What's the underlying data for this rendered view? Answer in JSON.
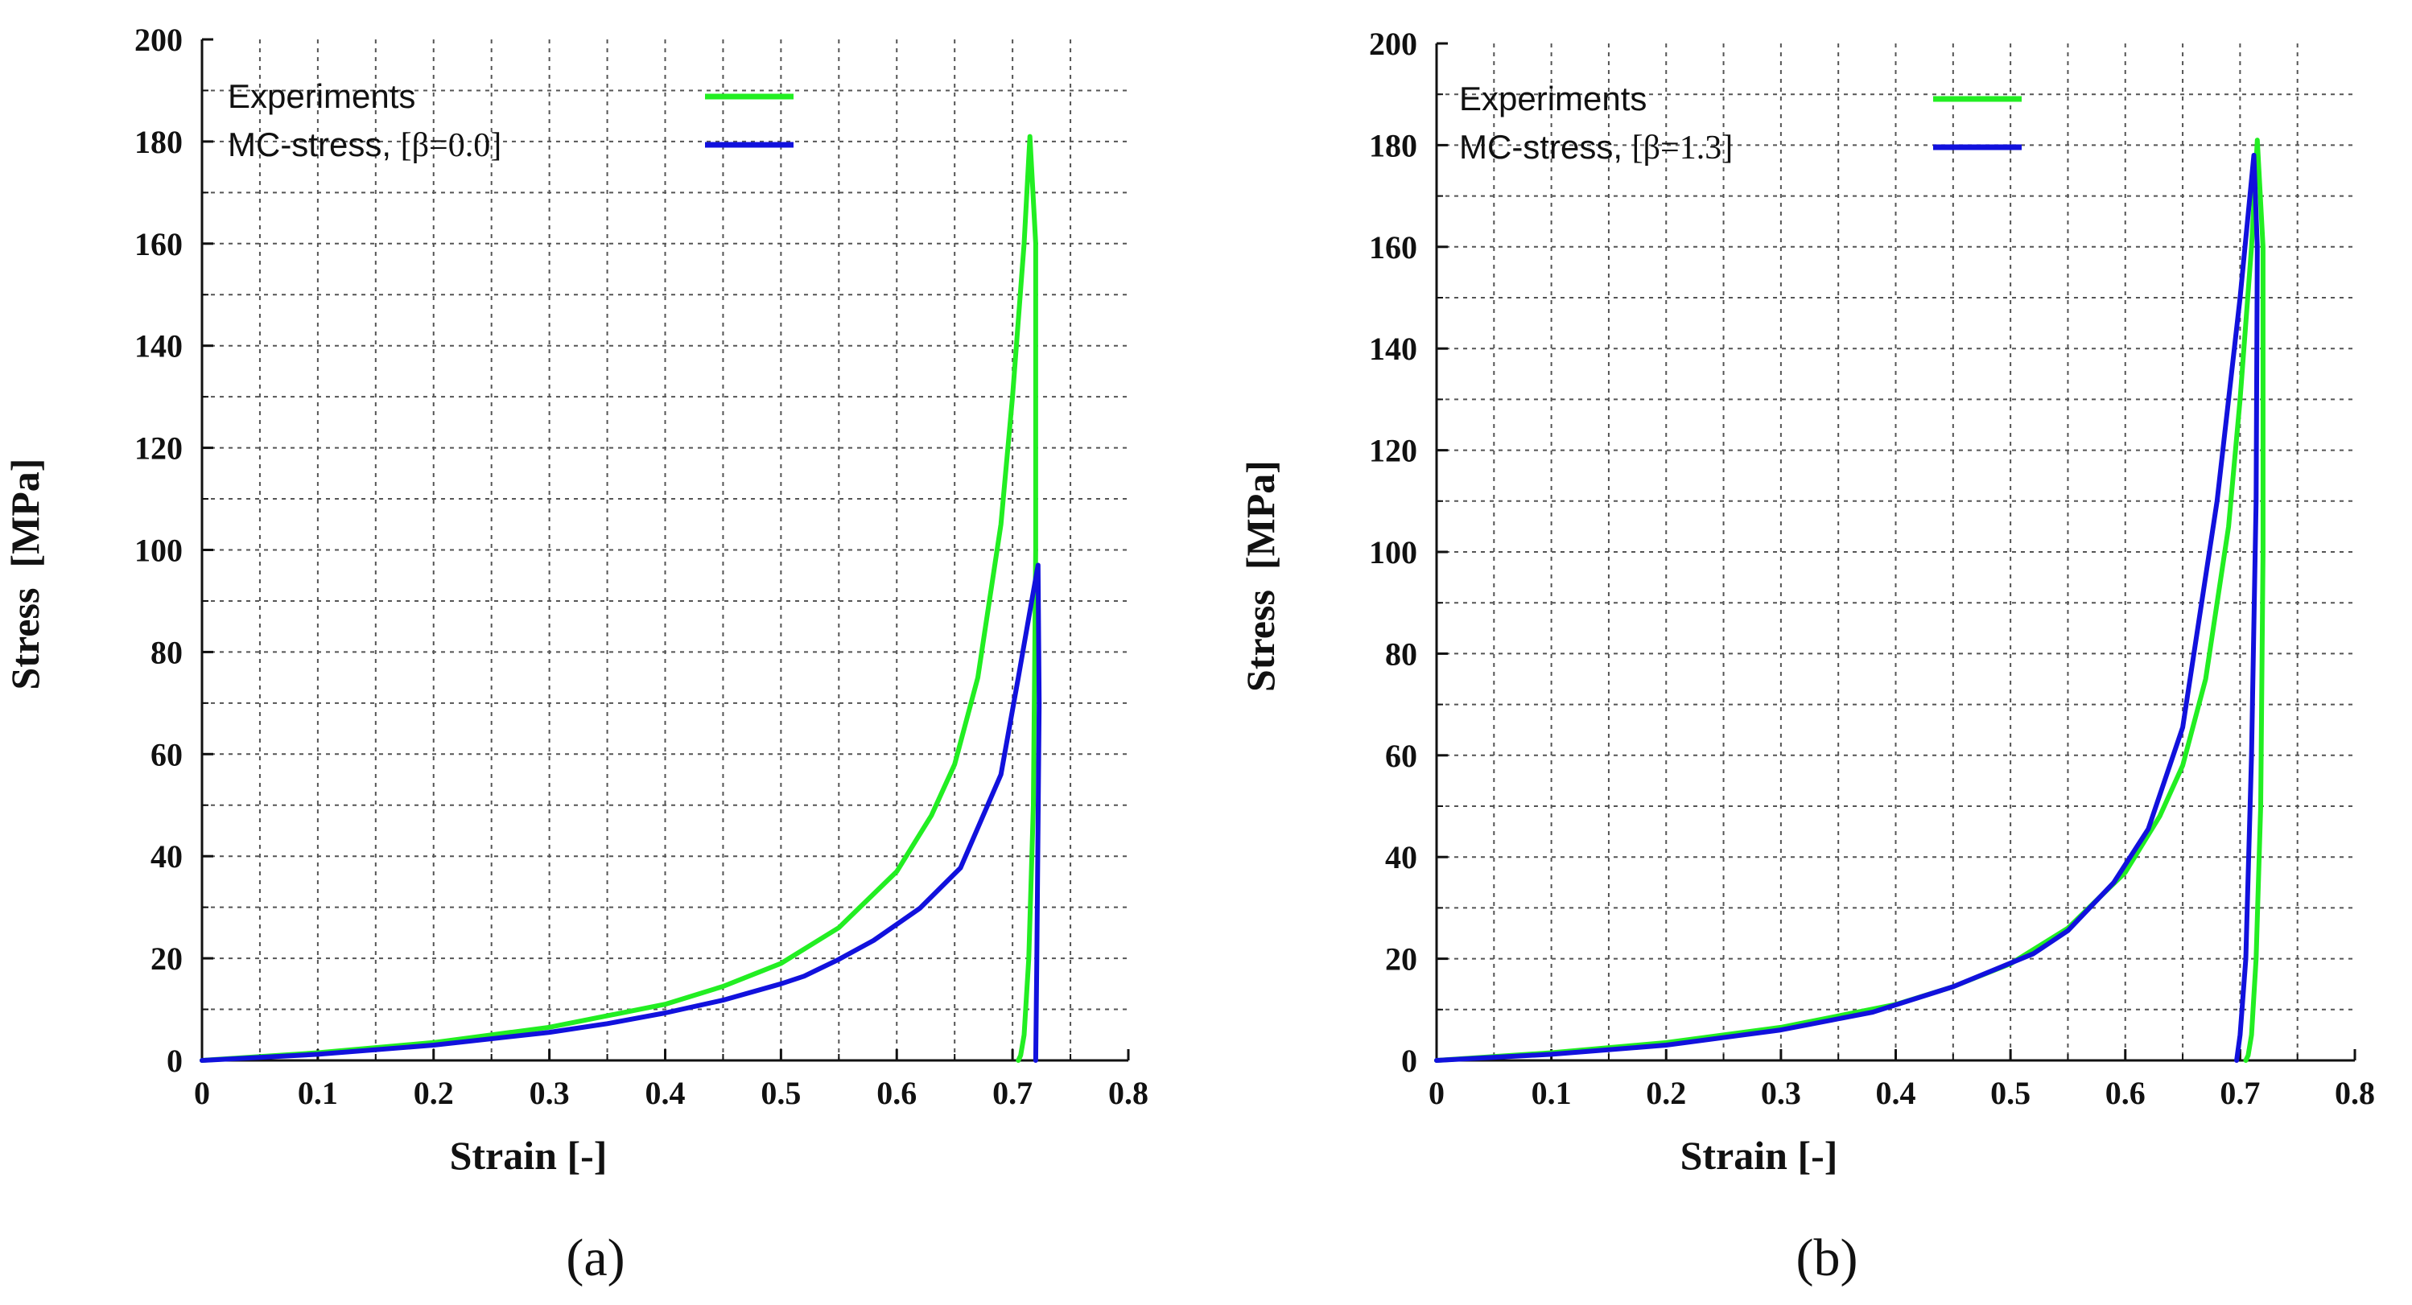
{
  "chart_data": [
    {
      "type": "line",
      "panel_label": "(a)",
      "xlabel": "Strain [-]",
      "ylabel": "Stress  [MPa]",
      "xlim": [
        0,
        0.8
      ],
      "ylim": [
        0,
        200
      ],
      "xticks": [
        "0",
        "0.1",
        "0.2",
        "0.3",
        "0.4",
        "0.5",
        "0.6",
        "0.7",
        "0.8"
      ],
      "yticks": [
        "0",
        "20",
        "40",
        "60",
        "80",
        "100",
        "120",
        "140",
        "160",
        "180",
        "200"
      ],
      "grid": true,
      "legend": {
        "placement": "top-left",
        "entries": [
          {
            "label": "Experiments",
            "param": "",
            "color": "#22ee22"
          },
          {
            "label": "MC-stress, ",
            "param": "[β=0.0]",
            "color": "#1111dd"
          }
        ]
      },
      "series": [
        {
          "name": "Experiments",
          "color": "#22ee22",
          "x": [
            0,
            0.1,
            0.2,
            0.3,
            0.4,
            0.45,
            0.5,
            0.55,
            0.6,
            0.63,
            0.65,
            0.67,
            0.69,
            0.7,
            0.71,
            0.715,
            0.72,
            0.72,
            0.718,
            0.714,
            0.71,
            0.707,
            0.705
          ],
          "y": [
            0,
            1.5,
            3.5,
            6.5,
            11,
            14.5,
            19,
            26,
            37,
            48,
            58,
            75,
            105,
            130,
            160,
            181,
            160,
            100,
            50,
            20,
            5,
            1,
            0
          ]
        },
        {
          "name": "MC-stress, [β=0.0]",
          "color": "#1111dd",
          "x": [
            0,
            0.1,
            0.2,
            0.3,
            0.35,
            0.4,
            0.45,
            0.5,
            0.52,
            0.55,
            0.58,
            0.62,
            0.655,
            0.69,
            0.705,
            0.715,
            0.722,
            0.723,
            0.721,
            0.72
          ],
          "y": [
            0,
            1.2,
            3,
            5.5,
            7.2,
            9.3,
            11.8,
            15,
            16.5,
            19.8,
            23.5,
            29.8,
            37.7,
            56,
            75,
            88,
            97,
            70,
            20,
            0
          ]
        }
      ]
    },
    {
      "type": "line",
      "panel_label": "(b)",
      "xlabel": "Strain [-]",
      "ylabel": "Stress  [MPa]",
      "xlim": [
        0,
        0.8
      ],
      "ylim": [
        0,
        200
      ],
      "xticks": [
        "0",
        "0.1",
        "0.2",
        "0.3",
        "0.4",
        "0.5",
        "0.6",
        "0.7",
        "0.8"
      ],
      "yticks": [
        "0",
        "20",
        "40",
        "60",
        "80",
        "100",
        "120",
        "140",
        "160",
        "180",
        "200"
      ],
      "grid": true,
      "legend": {
        "placement": "top-left",
        "entries": [
          {
            "label": "Experiments",
            "param": "",
            "color": "#22ee22"
          },
          {
            "label": "MC-stress, ",
            "param": "[β=1.3]",
            "color": "#1111dd"
          }
        ]
      },
      "series": [
        {
          "name": "Experiments",
          "color": "#22ee22",
          "x": [
            0,
            0.1,
            0.2,
            0.3,
            0.4,
            0.45,
            0.5,
            0.55,
            0.6,
            0.63,
            0.65,
            0.67,
            0.69,
            0.7,
            0.71,
            0.715,
            0.72,
            0.72,
            0.718,
            0.714,
            0.71,
            0.707,
            0.705
          ],
          "y": [
            0,
            1.5,
            3.5,
            6.5,
            11,
            14.5,
            19,
            26,
            37,
            48,
            58,
            75,
            105,
            130,
            160,
            181,
            160,
            100,
            50,
            20,
            5,
            1,
            0
          ]
        },
        {
          "name": "MC-stress, [β=1.3]",
          "color": "#1111dd",
          "x": [
            0,
            0.1,
            0.2,
            0.3,
            0.38,
            0.45,
            0.52,
            0.55,
            0.59,
            0.62,
            0.65,
            0.68,
            0.7,
            0.712,
            0.715,
            0.714,
            0.71,
            0.705,
            0.7,
            0.697
          ],
          "y": [
            0,
            1.2,
            3,
            6,
            9.5,
            14.5,
            21,
            25.5,
            35,
            45.5,
            65.5,
            110,
            150,
            178,
            160,
            110,
            60,
            20,
            5,
            0
          ]
        }
      ]
    }
  ]
}
